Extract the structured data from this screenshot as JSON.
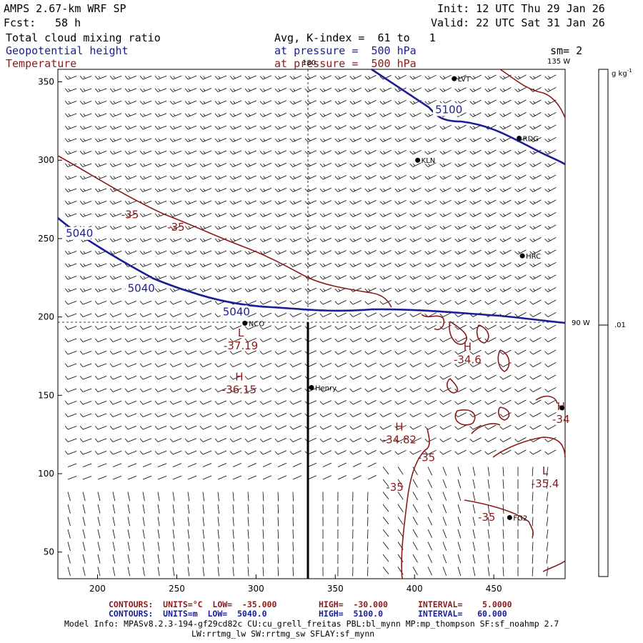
{
  "header": {
    "model": "AMPS 2.67-km WRF SP",
    "init": "Init: 12 UTC Thu 29 Jan 26",
    "fcst_label": "Fcst:",
    "fcst_value": "58 h",
    "valid": "Valid: 22 UTC Sat 31 Jan 26",
    "field1": "Total cloud mixing ratio",
    "field2": "Geopotential height",
    "field3": "Temperature",
    "avg": "Avg, K-index =  61 to   1",
    "press1": "at pressure =  500 hPa",
    "press2": "at pressure =  500 hPa",
    "sm": "sm= 2"
  },
  "map_labels": {
    "lon_180": "180",
    "lon_135": "135 W",
    "lon_90": "90 W",
    "colorbar_unit": "g kg",
    "colorbar_unit_exp": "-1",
    "colorbar_value": ".01"
  },
  "axes": {
    "x_ticks": [
      "200",
      "250",
      "300",
      "350",
      "400",
      "450"
    ],
    "y_ticks": [
      "350",
      "300",
      "250",
      "200",
      "150",
      "100",
      "50"
    ],
    "x_range": [
      175,
      495
    ],
    "y_range": [
      33,
      358
    ]
  },
  "stations": [
    {
      "name": "LVT",
      "x": 425,
      "y": 352
    },
    {
      "name": "RDG",
      "x": 466,
      "y": 314
    },
    {
      "name": "KLN",
      "x": 402,
      "y": 300
    },
    {
      "name": "HRC",
      "x": 468,
      "y": 239
    },
    {
      "name": "NCO",
      "x": 293,
      "y": 196
    },
    {
      "name": "Henry",
      "x": 335,
      "y": 155
    },
    {
      "name": "",
      "x": 493,
      "y": 142
    },
    {
      "name": "FG2",
      "x": 460,
      "y": 72
    }
  ],
  "contour_labels": {
    "height": [
      {
        "text": "5100",
        "x": 413,
        "y": 330
      },
      {
        "text": "5040",
        "x": 180,
        "y": 251
      },
      {
        "text": "5040",
        "x": 219,
        "y": 216
      },
      {
        "text": "5040",
        "x": 279,
        "y": 201
      }
    ],
    "temperature": [
      {
        "text": "-35",
        "x": 215,
        "y": 263
      },
      {
        "text": "-35",
        "x": 244,
        "y": 255
      },
      {
        "text": "-35",
        "x": 402,
        "y": 108
      },
      {
        "text": "-35",
        "x": 440,
        "y": 70
      },
      {
        "text": "-35",
        "x": 382,
        "y": 89
      }
    ],
    "extrema": [
      {
        "kind": "L",
        "value": "-37.19",
        "x": 285,
        "y": 183
      },
      {
        "kind": "H",
        "value": "-36.15",
        "x": 284,
        "y": 155
      },
      {
        "kind": "H",
        "value": "-34.6",
        "x": 428,
        "y": 174
      },
      {
        "kind": "H",
        "value": "-34.82",
        "x": 385,
        "y": 123
      },
      {
        "kind": "H",
        "value": "-34",
        "x": 487,
        "y": 136
      },
      {
        "kind": "L",
        "value": "-35.4",
        "x": 477,
        "y": 95
      }
    ]
  },
  "footer": {
    "t_contours": "CONTOURS:  UNITS=°C  LOW=  -35.000",
    "t_high": "HIGH=  -30.000",
    "t_interval": "INTERVAL=    5.0000",
    "z_contours": "CONTOURS:  UNITS=m  LOW=  5040.0",
    "z_high": "HIGH=  5100.0",
    "z_interval": "INTERVAL=   60.000",
    "model_info": "Model Info: MPASv8.2.3-194-gf29cd82c CU:cu_grell_freitas PBL:bl_mynn MP:mp_thompson SF:sf_noahmp 2.7",
    "model_info2": "LW:rrtmg_lw SW:rrtmg_sw SFLAY:sf_mynn"
  },
  "colors": {
    "height": "#1c1c96",
    "temperature": "#8c1a1a",
    "barb": "#000000"
  }
}
